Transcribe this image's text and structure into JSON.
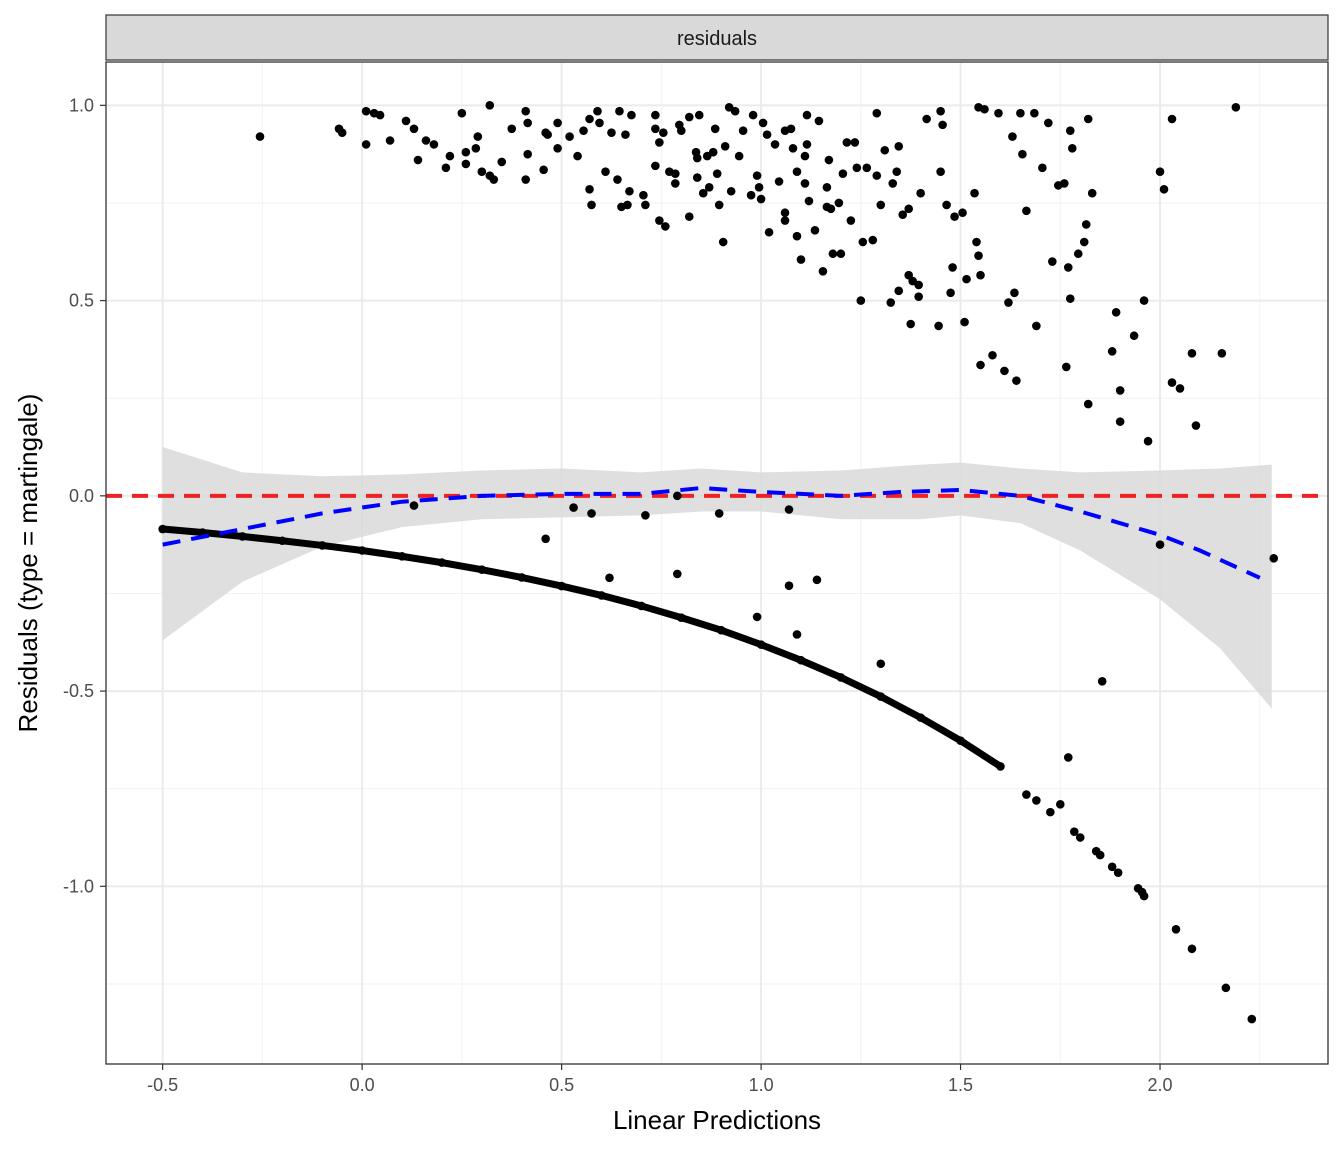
{
  "chart_data": {
    "type": "scatter",
    "facet_label": "residuals",
    "xlabel": "Linear Predictions",
    "ylabel": "Residuals (type = martingale)",
    "xlim": [
      -0.642,
      2.421
    ],
    "ylim": [
      -1.455,
      1.111
    ],
    "x_ticks": [
      -0.5,
      0.0,
      0.5,
      1.0,
      1.5,
      2.0
    ],
    "x_tick_labels": [
      "-0.5",
      "0.0",
      "0.5",
      "1.0",
      "1.5",
      "2.0"
    ],
    "y_ticks": [
      -1.0,
      -0.5,
      0.0,
      0.5,
      1.0
    ],
    "y_tick_labels": [
      "-1.0",
      "-0.5",
      "0.0",
      "0.5",
      "1.0"
    ],
    "grid": true,
    "colors": {
      "points": "#000000",
      "smooth": "#0000ff",
      "reference": "#ee2222",
      "band": "#d9d9d9"
    },
    "reference_line": {
      "y": 0,
      "style": "dashed"
    },
    "points_upper": [
      [
        -0.256,
        0.92
      ],
      [
        -0.058,
        0.94
      ],
      [
        -0.05,
        0.93
      ],
      [
        0.01,
        0.985
      ],
      [
        0.03,
        0.98
      ],
      [
        0.045,
        0.975
      ],
      [
        0.01,
        0.9
      ],
      [
        0.07,
        0.91
      ],
      [
        0.11,
        0.96
      ],
      [
        0.13,
        0.94
      ],
      [
        0.14,
        0.86
      ],
      [
        0.16,
        0.91
      ],
      [
        0.18,
        0.9
      ],
      [
        0.21,
        0.84
      ],
      [
        0.22,
        0.87
      ],
      [
        0.25,
        0.98
      ],
      [
        0.26,
        0.88
      ],
      [
        0.26,
        0.85
      ],
      [
        0.285,
        0.89
      ],
      [
        0.29,
        0.92
      ],
      [
        0.3,
        0.83
      ],
      [
        0.32,
        0.82
      ],
      [
        0.32,
        1.0
      ],
      [
        0.33,
        0.81
      ],
      [
        0.35,
        0.855
      ],
      [
        0.375,
        0.94
      ],
      [
        0.41,
        0.985
      ],
      [
        0.41,
        0.81
      ],
      [
        0.415,
        0.875
      ],
      [
        0.415,
        0.955
      ],
      [
        0.455,
        0.835
      ],
      [
        0.46,
        0.93
      ],
      [
        0.465,
        0.925
      ],
      [
        0.49,
        0.955
      ],
      [
        0.49,
        0.89
      ],
      [
        0.52,
        0.92
      ],
      [
        0.54,
        0.87
      ],
      [
        0.555,
        0.935
      ],
      [
        0.57,
        0.785
      ],
      [
        0.57,
        0.965
      ],
      [
        0.575,
        0.745
      ],
      [
        0.59,
        0.985
      ],
      [
        0.595,
        0.955
      ],
      [
        0.61,
        0.83
      ],
      [
        0.625,
        0.93
      ],
      [
        0.64,
        0.81
      ],
      [
        0.645,
        0.985
      ],
      [
        0.65,
        0.74
      ],
      [
        0.66,
        0.925
      ],
      [
        0.665,
        0.745
      ],
      [
        0.675,
        0.975
      ],
      [
        0.67,
        0.78
      ],
      [
        0.705,
        0.77
      ],
      [
        0.71,
        0.745
      ],
      [
        0.735,
        0.975
      ],
      [
        0.735,
        0.94
      ],
      [
        0.735,
        0.845
      ],
      [
        0.745,
        0.905
      ],
      [
        0.745,
        0.705
      ],
      [
        0.755,
        0.93
      ],
      [
        0.76,
        0.69
      ],
      [
        0.77,
        0.83
      ],
      [
        0.785,
        0.825
      ],
      [
        0.785,
        0.8
      ],
      [
        0.795,
        0.95
      ],
      [
        0.8,
        0.935
      ],
      [
        0.82,
        0.715
      ],
      [
        0.82,
        0.97
      ],
      [
        0.837,
        0.88
      ],
      [
        0.84,
        0.865
      ],
      [
        0.84,
        0.815
      ],
      [
        0.845,
        0.975
      ],
      [
        0.855,
        0.775
      ],
      [
        0.865,
        0.87
      ],
      [
        0.87,
        0.79
      ],
      [
        0.88,
        0.88
      ],
      [
        0.885,
        0.94
      ],
      [
        0.89,
        0.825
      ],
      [
        0.895,
        0.745
      ],
      [
        0.905,
        0.65
      ],
      [
        0.91,
        0.895
      ],
      [
        0.92,
        0.995
      ],
      [
        0.925,
        0.78
      ],
      [
        0.935,
        0.985
      ],
      [
        0.945,
        0.87
      ],
      [
        0.955,
        0.935
      ],
      [
        0.975,
        0.77
      ],
      [
        0.98,
        0.975
      ],
      [
        0.99,
        0.82
      ],
      [
        0.995,
        0.79
      ],
      [
        1.0,
        0.76
      ],
      [
        1.005,
        0.955
      ],
      [
        1.015,
        0.925
      ],
      [
        1.02,
        0.675
      ],
      [
        1.035,
        0.9
      ],
      [
        1.045,
        0.805
      ],
      [
        1.06,
        0.725
      ],
      [
        1.06,
        0.705
      ],
      [
        1.06,
        0.935
      ],
      [
        1.075,
        0.94
      ],
      [
        1.08,
        0.89
      ],
      [
        1.09,
        0.665
      ],
      [
        1.09,
        0.83
      ],
      [
        1.1,
        0.605
      ],
      [
        1.11,
        0.8
      ],
      [
        1.11,
        0.87
      ],
      [
        1.115,
        0.9
      ],
      [
        1.115,
        0.975
      ],
      [
        1.12,
        0.755
      ],
      [
        1.135,
        0.68
      ],
      [
        1.145,
        0.96
      ],
      [
        1.155,
        0.575
      ],
      [
        1.165,
        0.74
      ],
      [
        1.165,
        0.79
      ],
      [
        1.17,
        0.86
      ],
      [
        1.175,
        0.735
      ],
      [
        1.18,
        0.62
      ],
      [
        1.195,
        0.75
      ],
      [
        1.2,
        0.62
      ],
      [
        1.205,
        0.825
      ],
      [
        1.215,
        0.905
      ],
      [
        1.225,
        0.705
      ],
      [
        1.235,
        0.905
      ],
      [
        1.24,
        0.84
      ],
      [
        1.25,
        0.5
      ],
      [
        1.255,
        0.65
      ],
      [
        1.265,
        0.84
      ],
      [
        1.28,
        0.655
      ],
      [
        1.29,
        0.82
      ],
      [
        1.29,
        0.98
      ],
      [
        1.3,
        0.745
      ],
      [
        1.31,
        0.885
      ],
      [
        1.325,
        0.495
      ],
      [
        1.33,
        0.8
      ],
      [
        1.34,
        0.83
      ],
      [
        1.345,
        0.895
      ],
      [
        1.345,
        0.525
      ],
      [
        1.355,
        0.72
      ],
      [
        1.37,
        0.565
      ],
      [
        1.37,
        0.735
      ],
      [
        1.375,
        0.44
      ],
      [
        1.38,
        0.55
      ],
      [
        1.395,
        0.51
      ],
      [
        1.395,
        0.54
      ],
      [
        1.4,
        0.775
      ],
      [
        1.415,
        0.965
      ],
      [
        1.445,
        0.435
      ],
      [
        1.45,
        0.83
      ],
      [
        1.45,
        0.985
      ],
      [
        1.455,
        0.95
      ],
      [
        1.465,
        0.745
      ],
      [
        1.475,
        0.52
      ],
      [
        1.48,
        0.585
      ],
      [
        1.485,
        0.715
      ],
      [
        1.505,
        0.725
      ],
      [
        1.51,
        0.445
      ],
      [
        1.515,
        0.555
      ],
      [
        1.535,
        0.775
      ],
      [
        1.54,
        0.65
      ],
      [
        1.545,
        0.615
      ],
      [
        1.55,
        0.335
      ],
      [
        1.545,
        0.995
      ],
      [
        1.56,
        0.99
      ],
      [
        1.55,
        0.565
      ],
      [
        1.58,
        0.36
      ],
      [
        1.595,
        0.98
      ],
      [
        1.61,
        0.32
      ],
      [
        1.62,
        0.495
      ],
      [
        1.63,
        0.92
      ],
      [
        1.635,
        0.52
      ],
      [
        1.64,
        0.295
      ],
      [
        1.65,
        0.98
      ],
      [
        1.655,
        0.875
      ],
      [
        1.665,
        0.73
      ],
      [
        1.685,
        0.98
      ],
      [
        1.69,
        0.435
      ],
      [
        1.705,
        0.84
      ],
      [
        1.72,
        0.955
      ],
      [
        1.73,
        0.6
      ],
      [
        1.745,
        0.795
      ],
      [
        1.76,
        0.8
      ],
      [
        1.765,
        0.33
      ],
      [
        1.77,
        0.585
      ],
      [
        1.775,
        0.935
      ],
      [
        1.775,
        0.505
      ],
      [
        1.78,
        0.89
      ],
      [
        1.795,
        0.62
      ],
      [
        1.81,
        0.65
      ],
      [
        1.815,
        0.695
      ],
      [
        1.82,
        0.235
      ],
      [
        1.82,
        0.965
      ],
      [
        1.83,
        0.775
      ],
      [
        1.88,
        0.37
      ],
      [
        1.89,
        0.47
      ],
      [
        1.9,
        0.19
      ],
      [
        1.9,
        0.27
      ],
      [
        1.935,
        0.41
      ],
      [
        1.96,
        0.5
      ],
      [
        1.97,
        0.14
      ],
      [
        2.0,
        0.83
      ],
      [
        2.01,
        0.785
      ],
      [
        2.03,
        0.965
      ],
      [
        2.03,
        0.29
      ],
      [
        2.05,
        0.275
      ],
      [
        2.08,
        0.365
      ],
      [
        2.09,
        0.18
      ],
      [
        2.155,
        0.365
      ],
      [
        2.19,
        0.995
      ]
    ],
    "points_middle": [
      [
        0.13,
        -0.025
      ],
      [
        0.46,
        -0.11
      ],
      [
        0.53,
        -0.03
      ],
      [
        0.575,
        -0.045
      ],
      [
        0.62,
        -0.21
      ],
      [
        0.71,
        -0.05
      ],
      [
        0.79,
        0.0
      ],
      [
        0.79,
        -0.2
      ],
      [
        0.895,
        -0.045
      ],
      [
        0.99,
        -0.31
      ],
      [
        1.07,
        -0.035
      ],
      [
        1.07,
        -0.23
      ],
      [
        1.09,
        -0.355
      ],
      [
        1.14,
        -0.215
      ],
      [
        1.3,
        -0.43
      ],
      [
        1.855,
        -0.475
      ],
      [
        1.77,
        -0.67
      ],
      [
        2.0,
        -0.125
      ],
      [
        2.285,
        -0.16
      ],
      [
        1.75,
        -0.79
      ]
    ],
    "points_curve": [
      [
        -0.5,
        -0.085
      ],
      [
        -0.4,
        -0.094
      ],
      [
        -0.3,
        -0.104
      ],
      [
        -0.2,
        -0.115
      ],
      [
        -0.1,
        -0.127
      ],
      [
        0.0,
        -0.14
      ],
      [
        0.1,
        -0.155
      ],
      [
        0.2,
        -0.171
      ],
      [
        0.3,
        -0.189
      ],
      [
        0.4,
        -0.209
      ],
      [
        0.5,
        -0.231
      ],
      [
        0.6,
        -0.255
      ],
      [
        0.7,
        -0.282
      ],
      [
        0.8,
        -0.312
      ],
      [
        0.9,
        -0.344
      ],
      [
        1.0,
        -0.381
      ],
      [
        1.1,
        -0.421
      ],
      [
        1.2,
        -0.465
      ],
      [
        1.3,
        -0.514
      ],
      [
        1.4,
        -0.568
      ],
      [
        1.5,
        -0.627
      ],
      [
        1.6,
        -0.693
      ]
    ],
    "points_tail": [
      [
        1.665,
        -0.765
      ],
      [
        1.69,
        -0.78
      ],
      [
        1.725,
        -0.81
      ],
      [
        1.785,
        -0.86
      ],
      [
        1.8,
        -0.875
      ],
      [
        1.84,
        -0.91
      ],
      [
        1.85,
        -0.92
      ],
      [
        1.88,
        -0.95
      ],
      [
        1.895,
        -0.965
      ],
      [
        1.945,
        -1.005
      ],
      [
        1.955,
        -1.015
      ],
      [
        1.96,
        -1.025
      ],
      [
        2.04,
        -1.11
      ],
      [
        2.08,
        -1.16
      ],
      [
        2.165,
        -1.26
      ],
      [
        2.23,
        -1.34
      ]
    ],
    "smooth": {
      "x": [
        -0.5,
        -0.3,
        -0.1,
        0.1,
        0.3,
        0.5,
        0.7,
        0.85,
        1.0,
        1.2,
        1.35,
        1.5,
        1.65,
        1.8,
        2.0,
        2.1,
        2.25
      ],
      "y": [
        -0.125,
        -0.085,
        -0.045,
        -0.015,
        0.0,
        0.005,
        0.005,
        0.02,
        0.01,
        0.0,
        0.01,
        0.015,
        0.0,
        -0.04,
        -0.1,
        -0.14,
        -0.21
      ]
    },
    "band": {
      "x": [
        -0.5,
        -0.3,
        -0.1,
        0.1,
        0.3,
        0.5,
        0.7,
        0.85,
        1.0,
        1.2,
        1.4,
        1.5,
        1.65,
        1.8,
        2.0,
        2.15,
        2.28
      ],
      "upper": [
        0.125,
        0.06,
        0.05,
        0.055,
        0.065,
        0.07,
        0.06,
        0.07,
        0.06,
        0.065,
        0.08,
        0.085,
        0.07,
        0.06,
        0.065,
        0.07,
        0.08
      ],
      "lower": [
        -0.37,
        -0.22,
        -0.13,
        -0.08,
        -0.06,
        -0.055,
        -0.05,
        -0.04,
        -0.04,
        -0.06,
        -0.06,
        -0.05,
        -0.07,
        -0.14,
        -0.265,
        -0.39,
        -0.545
      ]
    }
  }
}
